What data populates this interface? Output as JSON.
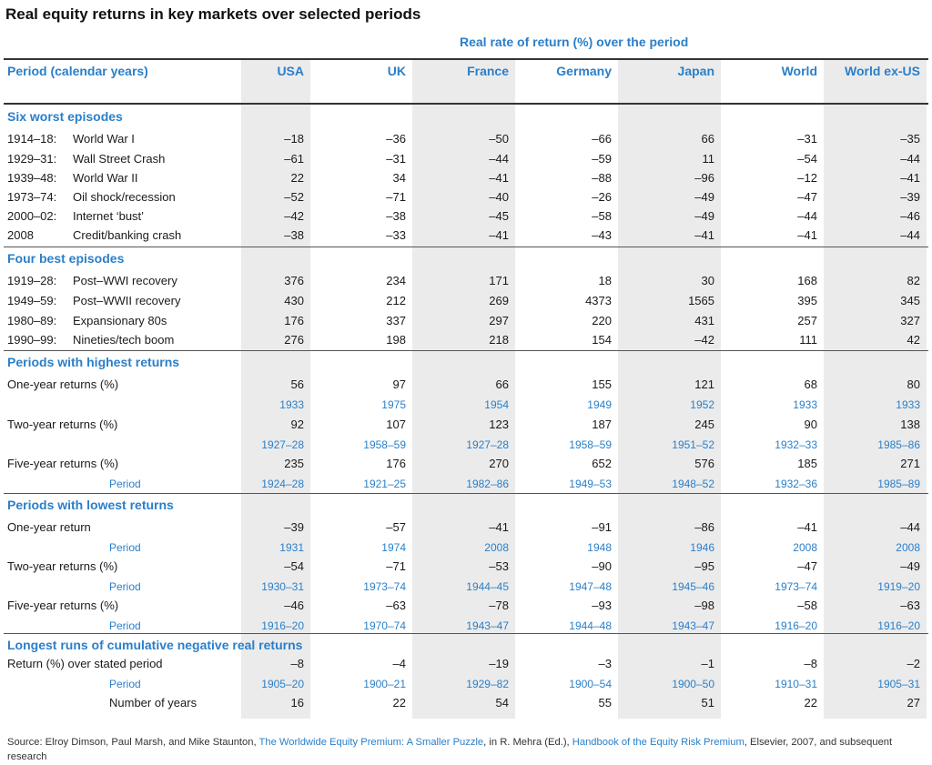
{
  "title": "Real equity returns in key markets over selected periods",
  "subtitle": "Real rate of return (%) over the period",
  "header": {
    "period": "Period (calendar years)",
    "columns": [
      "USA",
      "UK",
      "France",
      "Germany",
      "Japan",
      "World",
      "World ex-US"
    ]
  },
  "sections": [
    {
      "title": "Six worst episodes",
      "rows": [
        {
          "period": "1914–18:",
          "desc": "World War I",
          "values": [
            "–18",
            "–36",
            "–50",
            "–66",
            "66",
            "–31",
            "–35"
          ]
        },
        {
          "period": "1929–31:",
          "desc": "Wall Street Crash",
          "values": [
            "–61",
            "–31",
            "–44",
            "–59",
            "11",
            "–54",
            "–44"
          ]
        },
        {
          "period": "1939–48:",
          "desc": "World War II",
          "values": [
            "22",
            "34",
            "–41",
            "–88",
            "–96",
            "–12",
            "–41"
          ]
        },
        {
          "period": "1973–74:",
          "desc": "Oil shock/recession",
          "values": [
            "–52",
            "–71",
            "–40",
            "–26",
            "–49",
            "–47",
            "–39"
          ]
        },
        {
          "period": "2000–02:",
          "desc": "Internet ‘bust’",
          "values": [
            "–42",
            "–38",
            "–45",
            "–58",
            "–49",
            "–44",
            "–46"
          ]
        },
        {
          "period": "2008",
          "desc": "Credit/banking crash",
          "values": [
            "–38",
            "–33",
            "–41",
            "–43",
            "–41",
            "–41",
            "–44"
          ]
        }
      ]
    },
    {
      "title": "Four best episodes",
      "rows": [
        {
          "period": "1919–28:",
          "desc": "Post–WWI recovery",
          "values": [
            "376",
            "234",
            "171",
            "18",
            "30",
            "168",
            "82"
          ]
        },
        {
          "period": "1949–59:",
          "desc": "Post–WWII recovery",
          "values": [
            "430",
            "212",
            "269",
            "4373",
            "1565",
            "395",
            "345"
          ]
        },
        {
          "period": "1980–89:",
          "desc": "Expansionary 80s",
          "values": [
            "176",
            "337",
            "297",
            "220",
            "431",
            "257",
            "327"
          ]
        },
        {
          "period": "1990–99:",
          "desc": "Nineties/tech boom",
          "values": [
            "276",
            "198",
            "218",
            "154",
            "–42",
            "111",
            "42"
          ]
        }
      ]
    },
    {
      "title": "Periods with highest returns",
      "rows": [
        {
          "label": "One-year returns (%)",
          "values": [
            "56",
            "97",
            "66",
            "155",
            "121",
            "68",
            "80"
          ]
        },
        {
          "sublabel": "",
          "years": [
            "1933",
            "1975",
            "1954",
            "1949",
            "1952",
            "1933",
            "1933"
          ]
        },
        {
          "label": "Two-year returns (%)",
          "values": [
            "92",
            "107",
            "123",
            "187",
            "245",
            "90",
            "138"
          ]
        },
        {
          "sublabel": "",
          "years": [
            "1927–28",
            "1958–59",
            "1927–28",
            "1958–59",
            "1951–52",
            "1932–33",
            "1985–86"
          ]
        },
        {
          "label": "Five-year returns (%)",
          "values": [
            "235",
            "176",
            "270",
            "652",
            "576",
            "185",
            "271"
          ]
        },
        {
          "sublabel": "Period",
          "years": [
            "1924–28",
            "1921–25",
            "1982–86",
            "1949–53",
            "1948–52",
            "1932–36",
            "1985–89"
          ]
        }
      ]
    },
    {
      "title": "Periods with lowest returns",
      "rows": [
        {
          "label": "One-year return",
          "values": [
            "–39",
            "–57",
            "–41",
            "–91",
            "–86",
            "–41",
            "–44"
          ]
        },
        {
          "sublabel": "Period",
          "years": [
            "1931",
            "1974",
            "2008",
            "1948",
            "1946",
            "2008",
            "2008"
          ]
        },
        {
          "label": "Two-year returns (%)",
          "values": [
            "–54",
            "–71",
            "–53",
            "–90",
            "–95",
            "–47",
            "–49"
          ]
        },
        {
          "sublabel": "Period",
          "years": [
            "1930–31",
            "1973–74",
            "1944–45",
            "1947–48",
            "1945–46",
            "1973–74",
            "1919–20"
          ]
        },
        {
          "label": "Five-year returns (%)",
          "values": [
            "–46",
            "–63",
            "–78",
            "–93",
            "–98",
            "–58",
            "–63"
          ]
        },
        {
          "sublabel": "Period",
          "years": [
            "1916–20",
            "1970–74",
            "1943–47",
            "1944–48",
            "1943–47",
            "1916–20",
            "1916–20"
          ]
        }
      ]
    },
    {
      "title": "Longest runs of cumulative negative real returns",
      "rows": [
        {
          "label": "Return (%) over stated period",
          "values": [
            "–8",
            "–4",
            "–19",
            "–3",
            "–1",
            "–8",
            "–2"
          ]
        },
        {
          "sublabel": "Period",
          "years": [
            "1905–20",
            "1900–21",
            "1929–82",
            "1900–54",
            "1900–50",
            "1910–31",
            "1905–31"
          ]
        },
        {
          "sublabel_dark": "Number of years",
          "values": [
            "16",
            "22",
            "54",
            "55",
            "51",
            "22",
            "27"
          ]
        }
      ]
    }
  ],
  "source": {
    "prefix": "Source: Elroy Dimson, Paul Marsh, and Mike Staunton, ",
    "link1": "The Worldwide Equity Premium: A Smaller Puzzle",
    "mid": ", in R. Mehra (Ed.), ",
    "link2": "Handbook of the Equity Risk Premium",
    "suffix": ", Elsevier, 2007, and subsequent research"
  },
  "colors": {
    "accent": "#2a7fc9",
    "band": "#ebebeb"
  }
}
